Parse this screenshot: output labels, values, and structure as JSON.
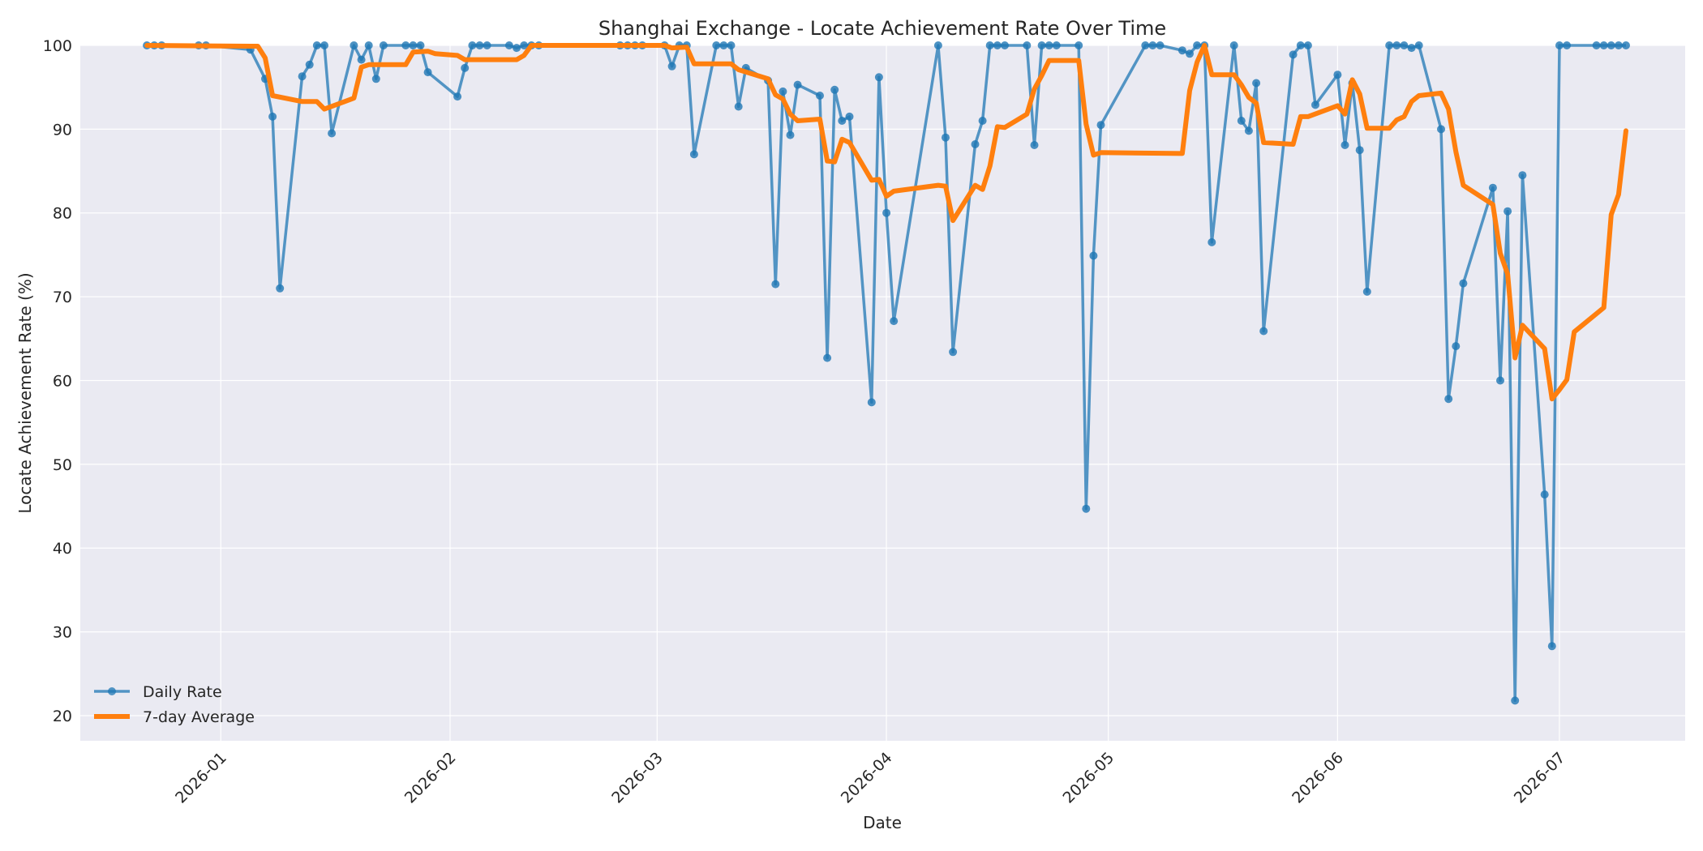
{
  "chart_data": {
    "type": "line",
    "title": "Shanghai Exchange - Locate Achievement Rate Over Time",
    "xlabel": "Date",
    "ylabel": "Locate Achievement Rate (%)",
    "xlim": [
      "2025-12-13",
      "2026-07-18"
    ],
    "ylim": [
      17,
      100
    ],
    "x_ticks": [
      "2026-01-01",
      "2026-02-01",
      "2026-03-01",
      "2026-04-01",
      "2026-05-01",
      "2026-06-01",
      "2026-07-01"
    ],
    "x_tick_labels": [
      "2026-01",
      "2026-02",
      "2026-03",
      "2026-04",
      "2026-05",
      "2026-06",
      "2026-07"
    ],
    "y_ticks": [
      20,
      30,
      40,
      50,
      60,
      70,
      80,
      90,
      100
    ],
    "y_tick_labels": [
      "20",
      "30",
      "40",
      "50",
      "60",
      "70",
      "80",
      "90",
      "100"
    ],
    "grid": true,
    "legend_position": "bottom-left",
    "colors": {
      "daily": "#1f77b4",
      "avg": "#ff7f0e",
      "plot_bg": "#eaeaf2",
      "grid": "#ffffff"
    },
    "series": [
      {
        "name": "Daily Rate",
        "marker": "circle",
        "points": [
          [
            "2025-12-22",
            100
          ],
          [
            "2025-12-23",
            100
          ],
          [
            "2025-12-24",
            100
          ],
          [
            "2025-12-29",
            100
          ],
          [
            "2025-12-30",
            100
          ],
          [
            "2026-01-05",
            99.5
          ],
          [
            "2026-01-07",
            96
          ],
          [
            "2026-01-08",
            91.5
          ],
          [
            "2026-01-09",
            71
          ],
          [
            "2026-01-12",
            96.3
          ],
          [
            "2026-01-13",
            97.7
          ],
          [
            "2026-01-14",
            100
          ],
          [
            "2026-01-15",
            100
          ],
          [
            "2026-01-16",
            89.5
          ],
          [
            "2026-01-19",
            100
          ],
          [
            "2026-01-20",
            98.3
          ],
          [
            "2026-01-21",
            100
          ],
          [
            "2026-01-22",
            96
          ],
          [
            "2026-01-23",
            100
          ],
          [
            "2026-01-26",
            100
          ],
          [
            "2026-01-27",
            100
          ],
          [
            "2026-01-28",
            100
          ],
          [
            "2026-01-29",
            96.8
          ],
          [
            "2026-02-02",
            93.9
          ],
          [
            "2026-02-03",
            97.3
          ],
          [
            "2026-02-04",
            100
          ],
          [
            "2026-02-05",
            100
          ],
          [
            "2026-02-06",
            100
          ],
          [
            "2026-02-09",
            100
          ],
          [
            "2026-02-10",
            99.7
          ],
          [
            "2026-02-11",
            100
          ],
          [
            "2026-02-12",
            100
          ],
          [
            "2026-02-13",
            100
          ],
          [
            "2026-02-24",
            100
          ],
          [
            "2026-02-25",
            100
          ],
          [
            "2026-02-26",
            100
          ],
          [
            "2026-02-27",
            100
          ],
          [
            "2026-03-02",
            100
          ],
          [
            "2026-03-03",
            97.5
          ],
          [
            "2026-03-04",
            100
          ],
          [
            "2026-03-05",
            100
          ],
          [
            "2026-03-06",
            87
          ],
          [
            "2026-03-09",
            100
          ],
          [
            "2026-03-10",
            100
          ],
          [
            "2026-03-11",
            100
          ],
          [
            "2026-03-12",
            92.7
          ],
          [
            "2026-03-13",
            97.3
          ],
          [
            "2026-03-16",
            95.8
          ],
          [
            "2026-03-17",
            71.5
          ],
          [
            "2026-03-18",
            94.5
          ],
          [
            "2026-03-19",
            89.3
          ],
          [
            "2026-03-20",
            95.3
          ],
          [
            "2026-03-23",
            94
          ],
          [
            "2026-03-24",
            62.7
          ],
          [
            "2026-03-25",
            94.7
          ],
          [
            "2026-03-26",
            91
          ],
          [
            "2026-03-27",
            91.5
          ],
          [
            "2026-03-30",
            57.4
          ],
          [
            "2026-03-31",
            96.2
          ],
          [
            "2026-04-01",
            80
          ],
          [
            "2026-04-02",
            67.1
          ],
          [
            "2026-04-08",
            100
          ],
          [
            "2026-04-09",
            89
          ],
          [
            "2026-04-10",
            63.4
          ],
          [
            "2026-04-13",
            88.2
          ],
          [
            "2026-04-14",
            91
          ],
          [
            "2026-04-15",
            100
          ],
          [
            "2026-04-16",
            100
          ],
          [
            "2026-04-17",
            100
          ],
          [
            "2026-04-20",
            100
          ],
          [
            "2026-04-21",
            88.1
          ],
          [
            "2026-04-22",
            100
          ],
          [
            "2026-04-23",
            100
          ],
          [
            "2026-04-24",
            100
          ],
          [
            "2026-04-27",
            100
          ],
          [
            "2026-04-28",
            44.7
          ],
          [
            "2026-04-29",
            74.9
          ],
          [
            "2026-04-30",
            90.5
          ],
          [
            "2026-05-06",
            100
          ],
          [
            "2026-05-07",
            100
          ],
          [
            "2026-05-08",
            100
          ],
          [
            "2026-05-11",
            99.4
          ],
          [
            "2026-05-12",
            99
          ],
          [
            "2026-05-13",
            100
          ],
          [
            "2026-05-14",
            100
          ],
          [
            "2026-05-15",
            76.5
          ],
          [
            "2026-05-18",
            100
          ],
          [
            "2026-05-19",
            91
          ],
          [
            "2026-05-20",
            89.8
          ],
          [
            "2026-05-21",
            95.5
          ],
          [
            "2026-05-22",
            65.9
          ],
          [
            "2026-05-26",
            98.9
          ],
          [
            "2026-05-27",
            100
          ],
          [
            "2026-05-28",
            100
          ],
          [
            "2026-05-29",
            92.9
          ],
          [
            "2026-06-01",
            96.5
          ],
          [
            "2026-06-02",
            88.1
          ],
          [
            "2026-06-03",
            95.5
          ],
          [
            "2026-06-04",
            87.5
          ],
          [
            "2026-06-05",
            70.6
          ],
          [
            "2026-06-08",
            100
          ],
          [
            "2026-06-09",
            100
          ],
          [
            "2026-06-10",
            100
          ],
          [
            "2026-06-11",
            99.7
          ],
          [
            "2026-06-12",
            100
          ],
          [
            "2026-06-15",
            90
          ],
          [
            "2026-06-16",
            57.8
          ],
          [
            "2026-06-17",
            64.1
          ],
          [
            "2026-06-18",
            71.6
          ],
          [
            "2026-06-22",
            83
          ],
          [
            "2026-06-23",
            60
          ],
          [
            "2026-06-24",
            80.2
          ],
          [
            "2026-06-25",
            21.8
          ],
          [
            "2026-06-26",
            84.5
          ],
          [
            "2026-06-29",
            46.4
          ],
          [
            "2026-06-30",
            28.3
          ],
          [
            "2026-07-01",
            100
          ],
          [
            "2026-07-02",
            100
          ],
          [
            "2026-07-06",
            100
          ],
          [
            "2026-07-07",
            100
          ],
          [
            "2026-07-08",
            100
          ],
          [
            "2026-07-09",
            100
          ],
          [
            "2026-07-10",
            100
          ]
        ]
      },
      {
        "name": "7-day Average",
        "marker": "none",
        "points": [
          [
            "2025-12-22",
            100
          ],
          [
            "2026-01-05",
            99.9
          ],
          [
            "2026-01-06",
            99.9
          ],
          [
            "2026-01-07",
            98.5
          ],
          [
            "2026-01-08",
            94
          ],
          [
            "2026-01-12",
            93.3
          ],
          [
            "2026-01-14",
            93.3
          ],
          [
            "2026-01-15",
            92.4
          ],
          [
            "2026-01-19",
            93.7
          ],
          [
            "2026-01-20",
            97.4
          ],
          [
            "2026-01-21",
            97.7
          ],
          [
            "2026-01-26",
            97.7
          ],
          [
            "2026-01-27",
            99.2
          ],
          [
            "2026-01-29",
            99.3
          ],
          [
            "2026-01-30",
            99
          ],
          [
            "2026-02-02",
            98.8
          ],
          [
            "2026-02-03",
            98.3
          ],
          [
            "2026-02-10",
            98.3
          ],
          [
            "2026-02-11",
            98.8
          ],
          [
            "2026-02-12",
            100
          ],
          [
            "2026-03-02",
            100
          ],
          [
            "2026-03-03",
            99.7
          ],
          [
            "2026-03-05",
            99.8
          ],
          [
            "2026-03-06",
            97.8
          ],
          [
            "2026-03-11",
            97.8
          ],
          [
            "2026-03-12",
            97.1
          ],
          [
            "2026-03-16",
            96
          ],
          [
            "2026-03-17",
            94.1
          ],
          [
            "2026-03-18",
            93.6
          ],
          [
            "2026-03-19",
            91.8
          ],
          [
            "2026-03-20",
            91
          ],
          [
            "2026-03-23",
            91.2
          ],
          [
            "2026-03-24",
            86.2
          ],
          [
            "2026-03-25",
            86.1
          ],
          [
            "2026-03-26",
            88.8
          ],
          [
            "2026-03-27",
            88.4
          ],
          [
            "2026-03-30",
            83.9
          ],
          [
            "2026-03-31",
            84
          ],
          [
            "2026-04-01",
            82
          ],
          [
            "2026-04-02",
            82.6
          ],
          [
            "2026-04-08",
            83.3
          ],
          [
            "2026-04-09",
            83.2
          ],
          [
            "2026-04-10",
            79.1
          ],
          [
            "2026-04-13",
            83.3
          ],
          [
            "2026-04-14",
            82.8
          ],
          [
            "2026-04-15",
            85.6
          ],
          [
            "2026-04-16",
            90.3
          ],
          [
            "2026-04-17",
            90.2
          ],
          [
            "2026-04-20",
            91.8
          ],
          [
            "2026-04-21",
            94.8
          ],
          [
            "2026-04-22",
            96.4
          ],
          [
            "2026-04-23",
            98.2
          ],
          [
            "2026-04-27",
            98.2
          ],
          [
            "2026-04-28",
            90.6
          ],
          [
            "2026-04-29",
            86.9
          ],
          [
            "2026-04-30",
            87.2
          ],
          [
            "2026-05-11",
            87.1
          ],
          [
            "2026-05-12",
            94.6
          ],
          [
            "2026-05-13",
            98
          ],
          [
            "2026-05-14",
            100
          ],
          [
            "2026-05-15",
            96.5
          ],
          [
            "2026-05-18",
            96.5
          ],
          [
            "2026-05-19",
            95.3
          ],
          [
            "2026-05-20",
            93.8
          ],
          [
            "2026-05-21",
            93.1
          ],
          [
            "2026-05-22",
            88.4
          ],
          [
            "2026-05-26",
            88.2
          ],
          [
            "2026-05-27",
            91.5
          ],
          [
            "2026-05-28",
            91.5
          ],
          [
            "2026-06-01",
            92.8
          ],
          [
            "2026-06-02",
            91.8
          ],
          [
            "2026-06-03",
            95.9
          ],
          [
            "2026-06-04",
            94.2
          ],
          [
            "2026-06-05",
            90.1
          ],
          [
            "2026-06-08",
            90.1
          ],
          [
            "2026-06-09",
            91.1
          ],
          [
            "2026-06-10",
            91.5
          ],
          [
            "2026-06-11",
            93.3
          ],
          [
            "2026-06-12",
            94
          ],
          [
            "2026-06-15",
            94.3
          ],
          [
            "2026-06-16",
            92.4
          ],
          [
            "2026-06-17",
            87.3
          ],
          [
            "2026-06-18",
            83.3
          ],
          [
            "2026-06-22",
            81
          ],
          [
            "2026-06-23",
            75.2
          ],
          [
            "2026-06-24",
            72.7
          ],
          [
            "2026-06-25",
            62.7
          ],
          [
            "2026-06-26",
            66.6
          ],
          [
            "2026-06-29",
            63.8
          ],
          [
            "2026-06-30",
            57.8
          ],
          [
            "2026-07-01",
            58.9
          ],
          [
            "2026-07-02",
            60.1
          ],
          [
            "2026-07-03",
            65.8
          ],
          [
            "2026-07-07",
            68.7
          ],
          [
            "2026-07-08",
            79.8
          ],
          [
            "2026-07-09",
            82.2
          ],
          [
            "2026-07-10",
            89.8
          ]
        ]
      }
    ]
  }
}
